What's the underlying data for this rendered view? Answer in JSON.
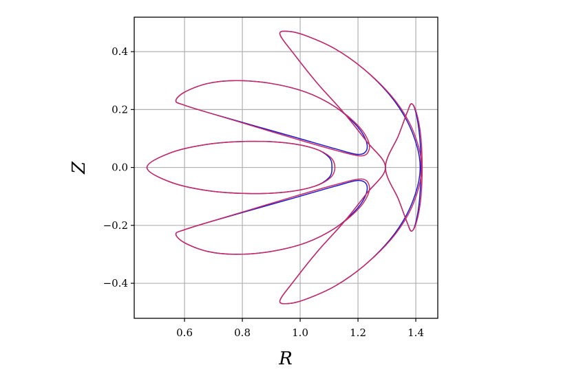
{
  "chart_data": {
    "type": "line",
    "xlabel": "R",
    "ylabel": "Z",
    "xlim": [
      0.426,
      1.476
    ],
    "ylim": [
      -0.521,
      0.519
    ],
    "xticks": [
      0.6,
      0.8,
      {
        "value": 1.0,
        "label": "1.0"
      },
      1.2,
      1.4
    ],
    "yticks": [
      {
        "value": -0.4,
        "label": "−0.4"
      },
      {
        "value": -0.2,
        "label": "−0.2"
      },
      {
        "value": 0.0,
        "label": "0.0"
      },
      0.2,
      0.4
    ],
    "grid": true,
    "closed": true,
    "series": [
      {
        "color": "#1a1ad0",
        "x": [
          0.57,
          0.6,
          0.68,
          0.78,
          0.9,
          1.02,
          1.12,
          1.19,
          1.225,
          1.23,
          1.2,
          1.12,
          0.98,
          0.82,
          0.68,
          0.6
        ],
        "y": [
          0.23,
          0.26,
          0.29,
          0.3,
          0.29,
          0.26,
          0.21,
          0.15,
          0.1,
          0.06,
          0.045,
          0.065,
          0.105,
          0.15,
          0.19,
          0.215
        ]
      },
      {
        "color": "#1a1ad0",
        "x": [
          0.57,
          0.6,
          0.68,
          0.78,
          0.9,
          1.02,
          1.12,
          1.19,
          1.225,
          1.23,
          1.2,
          1.12,
          0.98,
          0.82,
          0.68,
          0.6
        ],
        "y": [
          -0.23,
          -0.26,
          -0.29,
          -0.3,
          -0.29,
          -0.26,
          -0.21,
          -0.15,
          -0.1,
          -0.06,
          -0.045,
          -0.065,
          -0.105,
          -0.15,
          -0.19,
          -0.215
        ]
      },
      {
        "color": "#1a1ad0",
        "x": [
          0.47,
          0.55,
          0.68,
          0.82,
          0.95,
          1.05,
          1.1,
          1.11,
          1.1,
          1.05,
          0.95,
          0.82,
          0.68,
          0.55
        ],
        "y": [
          0,
          0.05,
          0.08,
          0.09,
          0.085,
          0.065,
          0.035,
          0,
          -0.035,
          -0.065,
          -0.085,
          -0.09,
          -0.08,
          -0.05
        ]
      },
      {
        "color": "#1a1ad0",
        "x": [
          0.93,
          0.96,
          1.02,
          1.12,
          1.22,
          1.31,
          1.37,
          1.405,
          1.415,
          1.405,
          1.37,
          1.31,
          1.22,
          1.12,
          1.02,
          0.96,
          0.93,
          0.98,
          1.06,
          1.15,
          1.23,
          1.295,
          1.23,
          1.15,
          1.06,
          0.98
        ],
        "y": [
          0.46,
          0.47,
          0.455,
          0.41,
          0.34,
          0.25,
          0.16,
          0.07,
          0,
          -0.07,
          -0.16,
          -0.25,
          -0.34,
          -0.41,
          -0.455,
          -0.47,
          -0.46,
          -0.39,
          -0.29,
          -0.19,
          -0.09,
          0,
          0.09,
          0.19,
          0.29,
          0.39
        ]
      },
      {
        "color": "#1a1ad0",
        "x": [
          1.385,
          1.4,
          1.413,
          1.418,
          1.413,
          1.4,
          1.385,
          1.37,
          1.34,
          1.295,
          1.34,
          1.37
        ],
        "y": [
          0.22,
          0.19,
          0.11,
          0,
          -0.11,
          -0.19,
          -0.22,
          -0.19,
          -0.11,
          0,
          0.11,
          0.19
        ]
      },
      {
        "color": "#cc2a62",
        "x": [
          0.57,
          0.6,
          0.68,
          0.78,
          0.9,
          1.02,
          1.12,
          1.195,
          1.232,
          1.238,
          1.21,
          1.12,
          0.98,
          0.82,
          0.68,
          0.6
        ],
        "y": [
          0.23,
          0.26,
          0.29,
          0.3,
          0.29,
          0.26,
          0.21,
          0.15,
          0.1,
          0.06,
          0.04,
          0.06,
          0.1,
          0.148,
          0.19,
          0.215
        ]
      },
      {
        "color": "#cc2a62",
        "x": [
          0.57,
          0.6,
          0.68,
          0.78,
          0.9,
          1.02,
          1.12,
          1.195,
          1.232,
          1.238,
          1.21,
          1.12,
          0.98,
          0.82,
          0.68,
          0.6
        ],
        "y": [
          -0.23,
          -0.26,
          -0.29,
          -0.3,
          -0.29,
          -0.26,
          -0.21,
          -0.15,
          -0.1,
          -0.06,
          -0.04,
          -0.06,
          -0.1,
          -0.148,
          -0.19,
          -0.215
        ]
      },
      {
        "color": "#cc2a62",
        "x": [
          0.47,
          0.55,
          0.68,
          0.82,
          0.95,
          1.05,
          1.105,
          1.12,
          1.105,
          1.05,
          0.95,
          0.82,
          0.68,
          0.55
        ],
        "y": [
          0,
          0.05,
          0.08,
          0.09,
          0.085,
          0.065,
          0.035,
          0,
          -0.035,
          -0.065,
          -0.085,
          -0.09,
          -0.08,
          -0.05
        ]
      },
      {
        "color": "#cc2a62",
        "x": [
          0.93,
          0.96,
          1.02,
          1.12,
          1.22,
          1.313,
          1.375,
          1.41,
          1.42,
          1.41,
          1.375,
          1.313,
          1.22,
          1.12,
          1.02,
          0.96,
          0.93,
          0.98,
          1.06,
          1.15,
          1.23,
          1.295,
          1.23,
          1.15,
          1.06,
          0.98
        ],
        "y": [
          0.46,
          0.47,
          0.455,
          0.41,
          0.34,
          0.25,
          0.16,
          0.07,
          0,
          -0.07,
          -0.16,
          -0.25,
          -0.34,
          -0.41,
          -0.455,
          -0.47,
          -0.46,
          -0.39,
          -0.29,
          -0.19,
          -0.09,
          0,
          0.09,
          0.19,
          0.29,
          0.39
        ]
      },
      {
        "color": "#cc2a62",
        "x": [
          1.385,
          1.402,
          1.417,
          1.422,
          1.417,
          1.402,
          1.385,
          1.37,
          1.34,
          1.295,
          1.34,
          1.37
        ],
        "y": [
          0.22,
          0.19,
          0.11,
          0,
          -0.11,
          -0.19,
          -0.22,
          -0.19,
          -0.11,
          0,
          0.11,
          0.19
        ]
      }
    ]
  }
}
